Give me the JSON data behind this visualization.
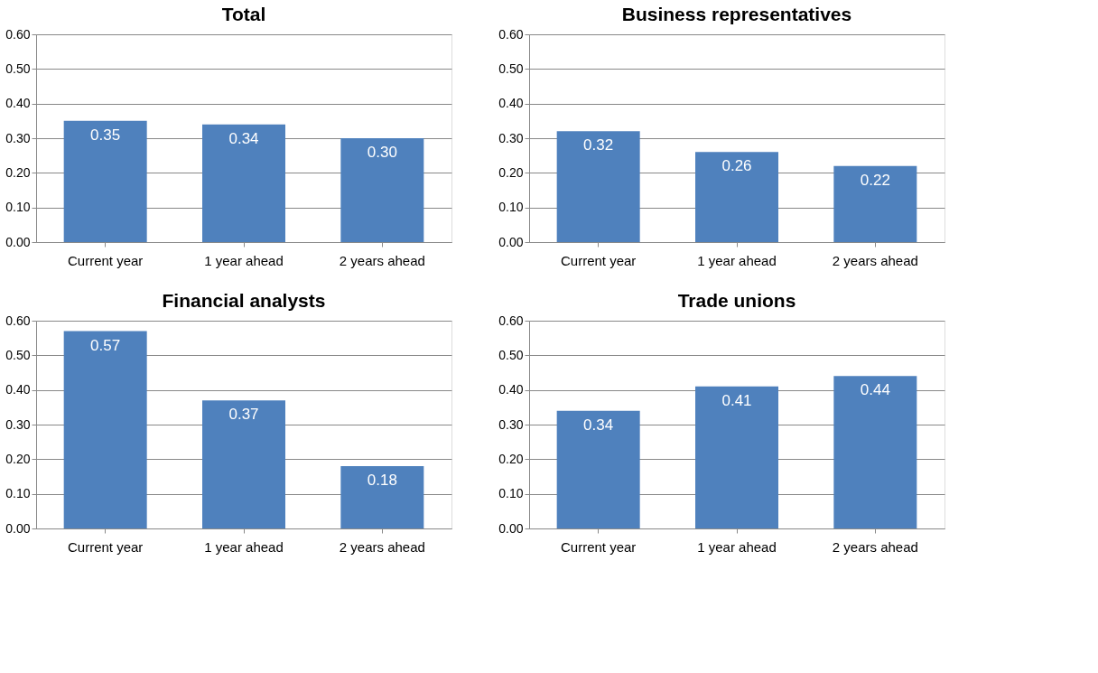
{
  "chart_data": [
    {
      "type": "bar",
      "title": "Total",
      "categories": [
        "Current year",
        "1 year ahead",
        "2 years ahead"
      ],
      "values": [
        0.35,
        0.34,
        0.3
      ],
      "value_labels": [
        "0.35",
        "0.34",
        "0.30"
      ],
      "color": "#4f81bd",
      "ylim": [
        0,
        0.6
      ],
      "yticks": [
        {
          "value": 0,
          "label": "0.00"
        },
        {
          "value": 0.1,
          "label": "0.10"
        },
        {
          "value": 0.2,
          "label": "0.20"
        },
        {
          "value": 0.3,
          "label": "0.30"
        },
        {
          "value": 0.4,
          "label": "0.40"
        },
        {
          "value": 0.5,
          "label": "0.50"
        },
        {
          "value": 0.6,
          "label": "0.60"
        }
      ],
      "grid": "y"
    },
    {
      "type": "bar",
      "title": "Business representatives",
      "categories": [
        "Current year",
        "1 year ahead",
        "2 years ahead"
      ],
      "values": [
        0.32,
        0.26,
        0.22
      ],
      "value_labels": [
        "0.32",
        "0.26",
        "0.22"
      ],
      "color": "#4f81bd",
      "ylim": [
        0,
        0.6
      ],
      "yticks": [
        {
          "value": 0,
          "label": "0.00"
        },
        {
          "value": 0.1,
          "label": "0.10"
        },
        {
          "value": 0.2,
          "label": "0.20"
        },
        {
          "value": 0.3,
          "label": "0.30"
        },
        {
          "value": 0.4,
          "label": "0.40"
        },
        {
          "value": 0.5,
          "label": "0.50"
        },
        {
          "value": 0.6,
          "label": "0.60"
        }
      ],
      "grid": "y"
    },
    {
      "type": "bar",
      "title": "Financial analysts",
      "categories": [
        "Current year",
        "1 year ahead",
        "2 years ahead"
      ],
      "values": [
        0.57,
        0.37,
        0.18
      ],
      "value_labels": [
        "0.57",
        "0.37",
        "0.18"
      ],
      "color": "#4f81bd",
      "ylim": [
        0,
        0.6
      ],
      "yticks": [
        {
          "value": 0,
          "label": "0.00"
        },
        {
          "value": 0.1,
          "label": "0.10"
        },
        {
          "value": 0.2,
          "label": "0.20"
        },
        {
          "value": 0.3,
          "label": "0.30"
        },
        {
          "value": 0.4,
          "label": "0.40"
        },
        {
          "value": 0.5,
          "label": "0.50"
        },
        {
          "value": 0.6,
          "label": "0.60"
        }
      ],
      "grid": "y"
    },
    {
      "type": "bar",
      "title": "Trade unions",
      "categories": [
        "Current year",
        "1 year ahead",
        "2 years ahead"
      ],
      "values": [
        0.34,
        0.41,
        0.44
      ],
      "value_labels": [
        "0.34",
        "0.41",
        "0.44"
      ],
      "color": "#4f81bd",
      "ylim": [
        0,
        0.6
      ],
      "yticks": [
        {
          "value": 0,
          "label": "0.00"
        },
        {
          "value": 0.1,
          "label": "0.10"
        },
        {
          "value": 0.2,
          "label": "0.20"
        },
        {
          "value": 0.3,
          "label": "0.30"
        },
        {
          "value": 0.4,
          "label": "0.40"
        },
        {
          "value": 0.5,
          "label": "0.50"
        },
        {
          "value": 0.6,
          "label": "0.60"
        }
      ],
      "grid": "y"
    }
  ]
}
